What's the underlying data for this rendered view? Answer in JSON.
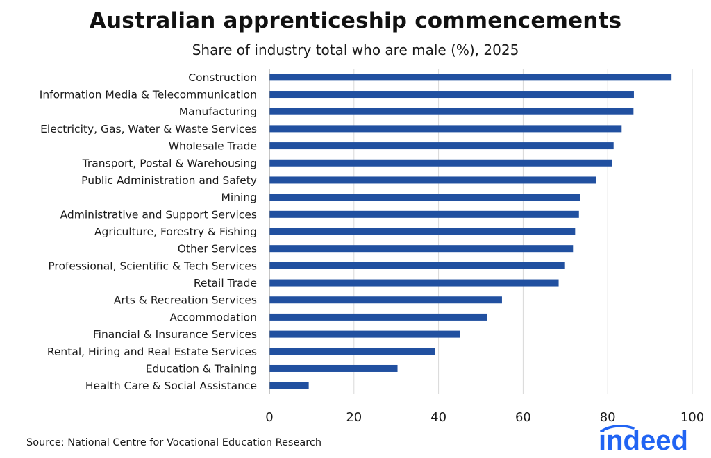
{
  "title": "Australian apprenticeship commencements",
  "subtitle": "Share of industry total who are male (%), 2025",
  "source": "Source: National Centre for Vocational Education Research",
  "logo_text": "indeed",
  "colors": {
    "bar": "#2150a0",
    "grid": "#d9d9d9",
    "axis": "#8c8c8c",
    "brand": "#2164f3"
  },
  "chart_data": {
    "type": "bar",
    "orientation": "horizontal",
    "title": "Australian apprenticeship commencements",
    "subtitle": "Share of industry total who are male (%), 2025",
    "xlabel": "",
    "ylabel": "",
    "xlim": [
      0,
      100
    ],
    "xticks": [
      "0",
      "20",
      "40",
      "60",
      "80",
      "100"
    ],
    "grid": "vertical",
    "categories": [
      "Construction",
      "Information Media & Telecommunication",
      "Manufacturing",
      "Electricity, Gas, Water & Waste Services",
      "Wholesale Trade",
      "Transport, Postal & Warehousing",
      "Public Administration and Safety",
      "Mining",
      "Administrative and Support Services",
      "Agriculture, Forestry & Fishing",
      "Other Services",
      "Professional, Scientific & Tech Services",
      "Retail Trade",
      "Arts & Recreation Services",
      "Accommodation",
      "Financial & Insurance Services",
      "Rental, Hiring and Real Estate Services",
      "Education & Training",
      "Health Care & Social Assistance"
    ],
    "values": [
      95.1,
      86.2,
      86.1,
      83.3,
      81.4,
      81.0,
      77.3,
      73.5,
      73.2,
      72.3,
      71.8,
      69.9,
      68.4,
      55.0,
      51.5,
      45.1,
      39.2,
      30.3,
      9.3
    ]
  }
}
